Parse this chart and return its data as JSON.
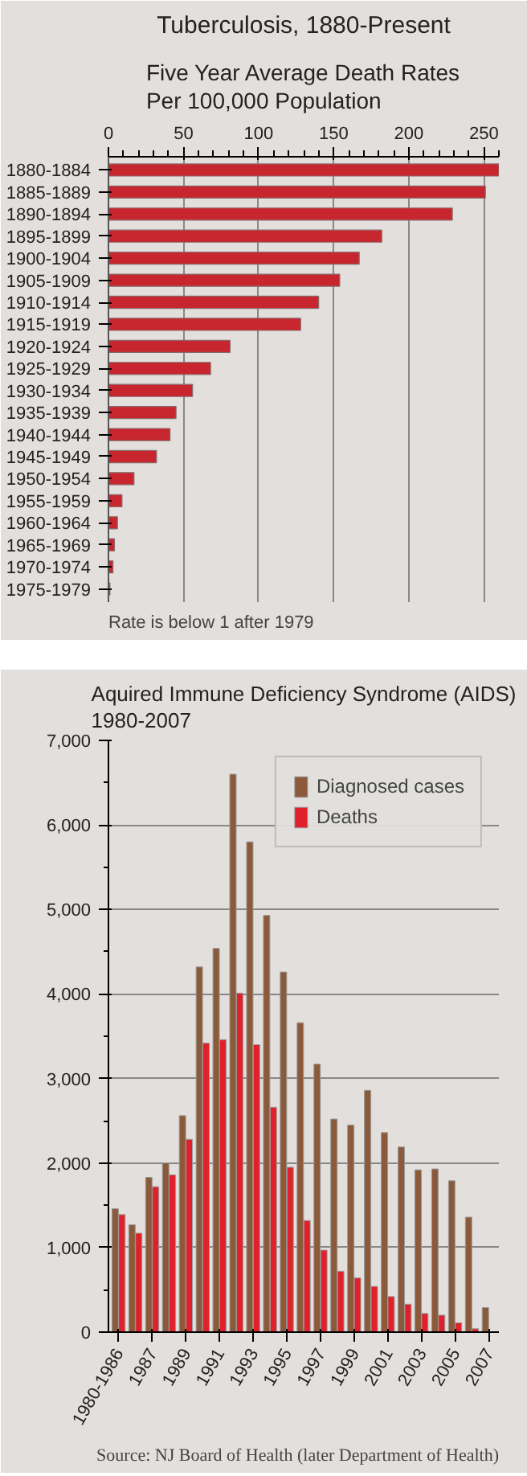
{
  "chart_data": [
    {
      "type": "bar",
      "orientation": "horizontal",
      "title": "Tuberculosis, 1880-Present",
      "subtitle": "Five Year Average Death Rates\nPer 100,000 Population",
      "categories": [
        "1880-1884",
        "1885-1889",
        "1890-1894",
        "1895-1899",
        "1900-1904",
        "1905-1909",
        "1910-1914",
        "1915-1919",
        "1920-1924",
        "1925-1929",
        "1930-1934",
        "1935-1939",
        "1940-1944",
        "1945-1949",
        "1950-1954",
        "1955-1959",
        "1960-1964",
        "1965-1969",
        "1970-1974",
        "1975-1979"
      ],
      "values": [
        260,
        251,
        229,
        182,
        167,
        154,
        140,
        128,
        81,
        68,
        56,
        45,
        41,
        32,
        17,
        9,
        6,
        4,
        3,
        1
      ],
      "color": "#c8262e",
      "xlim": [
        0,
        260
      ],
      "xticks": [
        0,
        50,
        100,
        150,
        200,
        250
      ],
      "grid": "x",
      "annotations": [
        "Rate is below 1 after 1979"
      ]
    },
    {
      "type": "bar",
      "title": "Aquired Immune Deficiency Syndrome (AIDS)\n1980-2007",
      "categories": [
        "1980-1986",
        null,
        "1987",
        null,
        "1989",
        null,
        "1991",
        null,
        "1993",
        null,
        "1995",
        null,
        "1997",
        null,
        "1999",
        null,
        "2001",
        null,
        "2003",
        null,
        "2005",
        null,
        "2007"
      ],
      "series": [
        {
          "name": "Diagnosed cases",
          "color": "#8b5a3a",
          "values": [
            1460,
            1270,
            1830,
            2000,
            2560,
            4320,
            4540,
            6600,
            5800,
            4930,
            4260,
            3660,
            3170,
            2520,
            2450,
            2860,
            2360,
            2190,
            1920,
            1930,
            1790,
            1360,
            290
          ]
        },
        {
          "name": "Deaths",
          "color": "#e0202a",
          "values": [
            1390,
            1170,
            1720,
            1860,
            2280,
            3420,
            3460,
            4010,
            3400,
            2660,
            1950,
            1320,
            970,
            720,
            640,
            540,
            420,
            330,
            220,
            200,
            110,
            40,
            null
          ]
        }
      ],
      "ylim": [
        0,
        7000
      ],
      "yticks": [
        {
          "value": 0,
          "label": "0"
        },
        {
          "value": 1000,
          "label": "1,000"
        },
        {
          "value": 2000,
          "label": "2,000"
        },
        {
          "value": 3000,
          "label": "3,000"
        },
        {
          "value": 4000,
          "label": "4,000"
        },
        {
          "value": 5000,
          "label": "5,000"
        },
        {
          "value": 6000,
          "label": "6,000"
        },
        {
          "value": 7000,
          "label": "7,000"
        }
      ],
      "grid": "y",
      "legend": "top right",
      "annotations": [
        "Source: NJ Board of Health (later Department of Health)"
      ]
    }
  ]
}
